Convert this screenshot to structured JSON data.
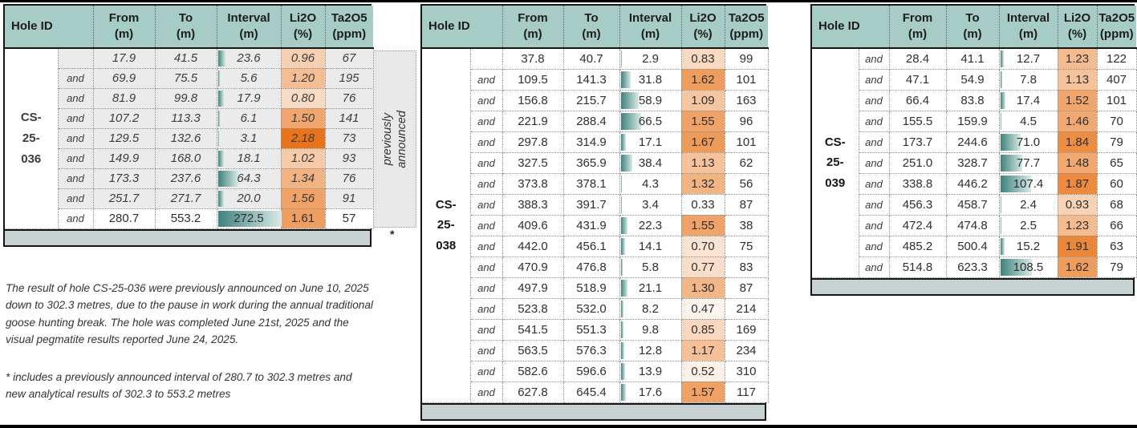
{
  "columns": {
    "hole_id": "Hole ID",
    "from": "From",
    "from_unit": "(m)",
    "to": "To",
    "to_unit": "(m)",
    "interval": "Interval",
    "interval_unit": "(m)",
    "li2o": "Li2O",
    "li2o_unit": "(%)",
    "ta2o5": "Ta2O5",
    "ta2o5_unit": "(ppm)"
  },
  "format": {
    "header_bg": "#a7ccc6",
    "footer_band_bg": "#c9d2d2",
    "prev_row_bg": "#ebebeb",
    "side_note_bg": "#e9e9e9",
    "li2o_scale": {
      "min_value": 0.33,
      "max_value": 2.18,
      "min_color": "#ffffff",
      "max_color": "#e8731a"
    },
    "interval_bar": {
      "scale_max": 200,
      "bar_color": "#3f827d",
      "bar_fade": "#d9eae7"
    }
  },
  "tables": [
    {
      "hole_id": "CS-25-036",
      "hole_id_lines": [
        "CS-",
        "25-",
        "036"
      ],
      "side_note": "previously announced",
      "footnote_marker": "*",
      "rows": [
        {
          "and": "",
          "from": "17.9",
          "to": "41.5",
          "interval": "23.6",
          "li2o": "0.96",
          "ta2o5": "67",
          "prev": true,
          "marker": ""
        },
        {
          "and": "and",
          "from": "69.9",
          "to": "75.5",
          "interval": "5.6",
          "li2o": "1.20",
          "ta2o5": "195",
          "prev": true,
          "marker": ""
        },
        {
          "and": "and",
          "from": "81.9",
          "to": "99.8",
          "interval": "17.9",
          "li2o": "0.80",
          "ta2o5": "76",
          "prev": true,
          "marker": ""
        },
        {
          "and": "and",
          "from": "107.2",
          "to": "113.3",
          "interval": "6.1",
          "li2o": "1.50",
          "ta2o5": "141",
          "prev": true,
          "marker": ""
        },
        {
          "and": "and",
          "from": "129.5",
          "to": "132.6",
          "interval": "3.1",
          "li2o": "2.18",
          "ta2o5": "73",
          "prev": true,
          "marker": ""
        },
        {
          "and": "and",
          "from": "149.9",
          "to": "168.0",
          "interval": "18.1",
          "li2o": "1.02",
          "ta2o5": "93",
          "prev": true,
          "marker": ""
        },
        {
          "and": "and",
          "from": "173.3",
          "to": "237.6",
          "interval": "64.3",
          "li2o": "1.34",
          "ta2o5": "76",
          "prev": true,
          "marker": ""
        },
        {
          "and": "and",
          "from": "251.7",
          "to": "271.7",
          "interval": "20.0",
          "li2o": "1.56",
          "ta2o5": "91",
          "prev": true,
          "marker": ""
        },
        {
          "and": "and",
          "from": "280.7",
          "to": "553.2",
          "interval": "272.5",
          "li2o": "1.61",
          "ta2o5": "57",
          "prev": false,
          "marker": "*"
        }
      ]
    },
    {
      "hole_id": "CS-25-038",
      "hole_id_lines": [
        "CS-",
        "25-",
        "038"
      ],
      "side_note": "",
      "footnote_marker": "",
      "rows": [
        {
          "and": "",
          "from": "37.8",
          "to": "40.7",
          "interval": "2.9",
          "li2o": "0.83",
          "ta2o5": "99",
          "prev": false,
          "marker": ""
        },
        {
          "and": "and",
          "from": "109.5",
          "to": "141.3",
          "interval": "31.8",
          "li2o": "1.62",
          "ta2o5": "101",
          "prev": false,
          "marker": ""
        },
        {
          "and": "and",
          "from": "156.8",
          "to": "215.7",
          "interval": "58.9",
          "li2o": "1.09",
          "ta2o5": "163",
          "prev": false,
          "marker": ""
        },
        {
          "and": "and",
          "from": "221.9",
          "to": "288.4",
          "interval": "66.5",
          "li2o": "1.55",
          "ta2o5": "96",
          "prev": false,
          "marker": ""
        },
        {
          "and": "and",
          "from": "297.8",
          "to": "314.9",
          "interval": "17.1",
          "li2o": "1.67",
          "ta2o5": "101",
          "prev": false,
          "marker": ""
        },
        {
          "and": "and",
          "from": "327.5",
          "to": "365.9",
          "interval": "38.4",
          "li2o": "1.13",
          "ta2o5": "62",
          "prev": false,
          "marker": ""
        },
        {
          "and": "and",
          "from": "373.8",
          "to": "378.1",
          "interval": "4.3",
          "li2o": "1.32",
          "ta2o5": "56",
          "prev": false,
          "marker": ""
        },
        {
          "and": "and",
          "from": "388.3",
          "to": "391.7",
          "interval": "3.4",
          "li2o": "0.33",
          "ta2o5": "87",
          "prev": false,
          "marker": ""
        },
        {
          "and": "and",
          "from": "409.6",
          "to": "431.9",
          "interval": "22.3",
          "li2o": "1.55",
          "ta2o5": "38",
          "prev": false,
          "marker": ""
        },
        {
          "and": "and",
          "from": "442.0",
          "to": "456.1",
          "interval": "14.1",
          "li2o": "0.70",
          "ta2o5": "75",
          "prev": false,
          "marker": ""
        },
        {
          "and": "and",
          "from": "470.9",
          "to": "476.8",
          "interval": "5.8",
          "li2o": "0.77",
          "ta2o5": "83",
          "prev": false,
          "marker": ""
        },
        {
          "and": "and",
          "from": "497.9",
          "to": "518.9",
          "interval": "21.1",
          "li2o": "1.30",
          "ta2o5": "87",
          "prev": false,
          "marker": ""
        },
        {
          "and": "and",
          "from": "523.8",
          "to": "532.0",
          "interval": "8.2",
          "li2o": "0.47",
          "ta2o5": "214",
          "prev": false,
          "marker": ""
        },
        {
          "and": "and",
          "from": "541.5",
          "to": "551.3",
          "interval": "9.8",
          "li2o": "0.85",
          "ta2o5": "169",
          "prev": false,
          "marker": ""
        },
        {
          "and": "and",
          "from": "563.5",
          "to": "576.3",
          "interval": "12.8",
          "li2o": "1.17",
          "ta2o5": "234",
          "prev": false,
          "marker": ""
        },
        {
          "and": "and",
          "from": "582.6",
          "to": "596.6",
          "interval": "13.9",
          "li2o": "0.52",
          "ta2o5": "310",
          "prev": false,
          "marker": ""
        },
        {
          "and": "and",
          "from": "627.8",
          "to": "645.4",
          "interval": "17.6",
          "li2o": "1.57",
          "ta2o5": "117",
          "prev": false,
          "marker": ""
        }
      ]
    },
    {
      "hole_id": "CS-25-039",
      "hole_id_lines": [
        "CS-",
        "25-",
        "039"
      ],
      "side_note": "",
      "footnote_marker": "",
      "rows": [
        {
          "and": "and",
          "from": "28.4",
          "to": "41.1",
          "interval": "12.7",
          "li2o": "1.23",
          "ta2o5": "122",
          "prev": false,
          "marker": ""
        },
        {
          "and": "and",
          "from": "47.1",
          "to": "54.9",
          "interval": "7.8",
          "li2o": "1.13",
          "ta2o5": "407",
          "prev": false,
          "marker": ""
        },
        {
          "and": "and",
          "from": "66.4",
          "to": "83.8",
          "interval": "17.4",
          "li2o": "1.52",
          "ta2o5": "101",
          "prev": false,
          "marker": ""
        },
        {
          "and": "and",
          "from": "155.5",
          "to": "159.9",
          "interval": "4.5",
          "li2o": "1.46",
          "ta2o5": "70",
          "prev": false,
          "marker": ""
        },
        {
          "and": "and",
          "from": "173.7",
          "to": "244.6",
          "interval": "71.0",
          "li2o": "1.84",
          "ta2o5": "79",
          "prev": false,
          "marker": ""
        },
        {
          "and": "and",
          "from": "251.0",
          "to": "328.7",
          "interval": "77.7",
          "li2o": "1.48",
          "ta2o5": "65",
          "prev": false,
          "marker": ""
        },
        {
          "and": "and",
          "from": "338.8",
          "to": "446.2",
          "interval": "107.4",
          "li2o": "1.87",
          "ta2o5": "60",
          "prev": false,
          "marker": ""
        },
        {
          "and": "and",
          "from": "456.3",
          "to": "458.7",
          "interval": "2.4",
          "li2o": "0.93",
          "ta2o5": "68",
          "prev": false,
          "marker": ""
        },
        {
          "and": "and",
          "from": "472.4",
          "to": "474.8",
          "interval": "2.5",
          "li2o": "1.23",
          "ta2o5": "66",
          "prev": false,
          "marker": ""
        },
        {
          "and": "and",
          "from": "485.2",
          "to": "500.4",
          "interval": "15.2",
          "li2o": "1.91",
          "ta2o5": "63",
          "prev": false,
          "marker": ""
        },
        {
          "and": "and",
          "from": "514.8",
          "to": "623.3",
          "interval": "108.5",
          "li2o": "1.62",
          "ta2o5": "79",
          "prev": false,
          "marker": ""
        }
      ]
    }
  ],
  "footnotes": [
    "The result of hole CS-25-036 were previously announced on June 10, 2025 down to 302.3 metres, due to the pause in work during the annual traditional goose hunting break.  The hole was completed June 21st, 2025 and the visual pegmatite results reported June 24, 2025.",
    "* includes a previously announced interval of 280.7 to 302.3 metres and new analytical results of 302.3 to 553.2 metres"
  ]
}
